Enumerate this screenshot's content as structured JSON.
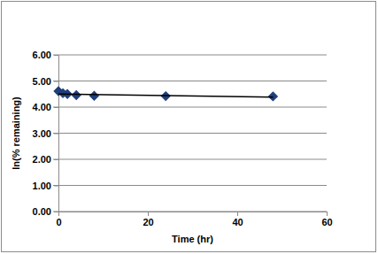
{
  "chart_data": {
    "type": "scatter",
    "x_label": "Time (hr)",
    "y_label": "ln(% remaining)",
    "series": [
      {
        "color": "#1f3d7a",
        "marker": "diamond",
        "x": [
          0,
          1,
          2,
          4,
          8,
          24,
          48
        ],
        "values": [
          4.61,
          4.53,
          4.5,
          4.46,
          4.43,
          4.42,
          4.41
        ]
      },
      {
        "type": "line",
        "color": "#000000",
        "line_style": "solid",
        "x": [
          0,
          48
        ],
        "values": [
          4.5,
          4.38
        ]
      }
    ],
    "xlim": [
      0,
      60
    ],
    "xticks": [
      0,
      20,
      40,
      60
    ],
    "ylim": [
      0,
      6
    ],
    "yticks": [
      {
        "value": 0,
        "label": "0.00"
      },
      {
        "value": 1,
        "label": "1.00"
      },
      {
        "value": 2,
        "label": "2.00"
      },
      {
        "value": 3,
        "label": "3.00"
      },
      {
        "value": 4,
        "label": "4.00"
      },
      {
        "value": 5,
        "label": "5.00"
      },
      {
        "value": 6,
        "label": "6.00"
      }
    ],
    "grid": true
  }
}
